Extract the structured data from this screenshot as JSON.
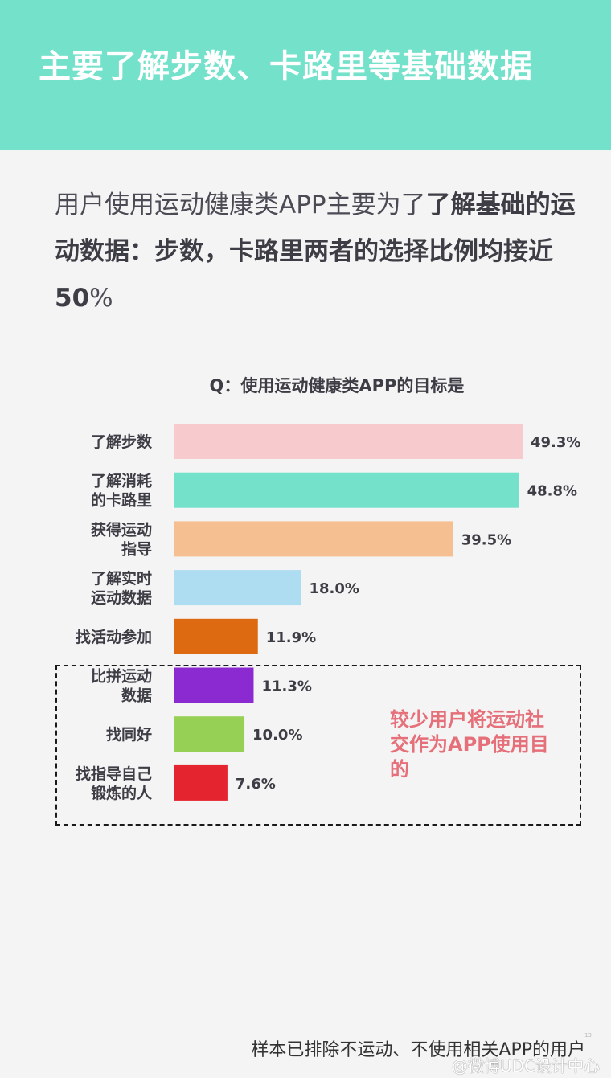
{
  "header": {
    "title": "主要了解步数、卡路里等基础数据"
  },
  "intro": {
    "text_plain": "用户使用运动健康类APP主要为了",
    "text_bold_1": "了解基础的运动数据：步数，卡路里两者的选择比例均接近50",
    "text_tail": "%"
  },
  "chart_data": {
    "type": "bar",
    "orientation": "horizontal",
    "title": "Q：使用运动健康类APP的目标是",
    "categories": [
      [
        "了解步数"
      ],
      [
        "了解消耗",
        "的卡路里"
      ],
      [
        "获得运动",
        "指导"
      ],
      [
        "了解实时",
        "运动数据"
      ],
      [
        "找活动参加"
      ],
      [
        "比拼运动",
        "数据"
      ],
      [
        "找同好"
      ],
      [
        "找指导自己",
        "锻炼的人"
      ]
    ],
    "values": [
      49.3,
      48.8,
      39.5,
      18.0,
      11.9,
      11.3,
      10.0,
      7.6
    ],
    "value_labels": [
      "49.3%",
      "48.8%",
      "39.5%",
      "18.0%",
      "11.9%",
      "11.3%",
      "10.0%",
      "7.6%"
    ],
    "colors": [
      "#f7cbcd",
      "#74e2cb",
      "#f6bf91",
      "#aedcf1",
      "#dd6a10",
      "#8a2ad0",
      "#96d155",
      "#e4252f"
    ],
    "xlim": [
      0,
      49.3
    ],
    "grid": false,
    "legend": "none"
  },
  "annotation": {
    "text": "较少用户将运动社交作为APP使用目的"
  },
  "footnote": "样本已排除不运动、不使用相关APP的用户",
  "page_number": "13",
  "watermark": "@微博UDC设计中心"
}
